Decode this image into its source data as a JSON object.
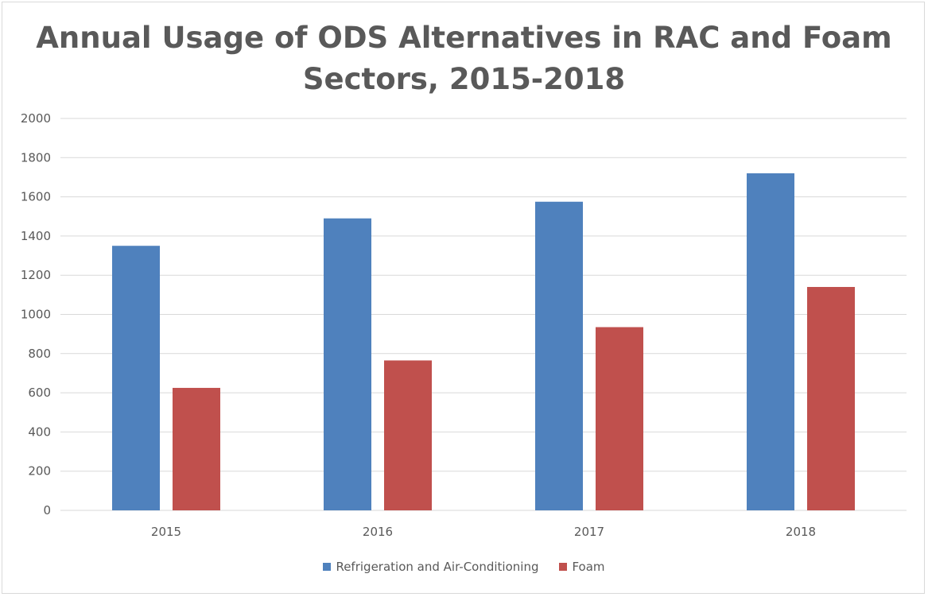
{
  "chart_data": {
    "type": "bar",
    "title_lines": [
      "Annual Usage of ODS Alternatives in RAC and Foam",
      "Sectors, 2015-2018"
    ],
    "categories": [
      "2015",
      "2016",
      "2017",
      "2018"
    ],
    "series": [
      {
        "name": "Refrigeration and Air-Conditioning",
        "color": "#4f81bd",
        "values": [
          1350,
          1490,
          1575,
          1720
        ]
      },
      {
        "name": "Foam",
        "color": "#c0504d",
        "values": [
          625,
          765,
          935,
          1140
        ]
      }
    ],
    "ylim": [
      0,
      2000
    ],
    "yticks": [
      "0",
      "200",
      "400",
      "600",
      "800",
      "1000",
      "1200",
      "1400",
      "1600",
      "1800",
      "2000"
    ],
    "grid": true,
    "gridline_color": "#d9d9d9",
    "legend_position": "bottom"
  }
}
